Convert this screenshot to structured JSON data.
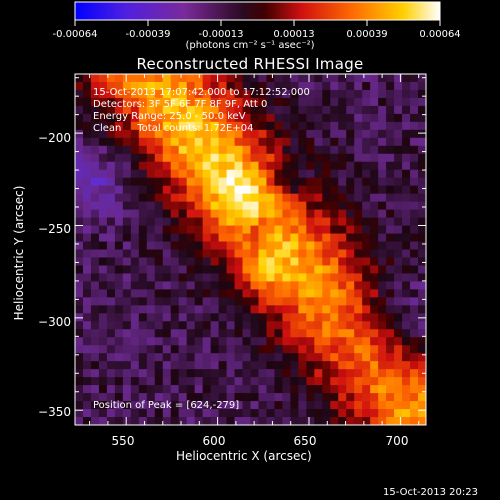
{
  "colorbar": {
    "ticks": [
      "-0.00064",
      "-0.00039",
      "-0.00013",
      "0.00013",
      "0.00039",
      "0.00064"
    ],
    "units": "(photons cm⁻² s⁻¹ asec⁻²)"
  },
  "chart_data": {
    "type": "heatmap",
    "title": "Reconstructed RHESSI Image",
    "xlabel": "Heliocentric X (arcsec)",
    "ylabel": "Heliocentric Y (arcsec)",
    "xlim": [
      522,
      714
    ],
    "ylim": [
      -358,
      -168
    ],
    "xticks": [
      550,
      600,
      650,
      700
    ],
    "yticks": [
      -200,
      -250,
      -300,
      -350
    ],
    "xtick_labels": [
      "550",
      "600",
      "650",
      "700"
    ],
    "ytick_labels": [
      "−200",
      "−250",
      "−300",
      "−350"
    ],
    "color_range": [
      -0.00064,
      0.00064
    ],
    "colormap": [
      "#0000ff",
      "#8a2be2",
      "#5a2a8a",
      "#000000",
      "#d01010",
      "#ff6a00",
      "#ffd000",
      "#ffffff"
    ],
    "peak_position": [
      624,
      -279
    ],
    "annotations": [
      "15-Oct-2013 17:07:42.000 to 17:12:52.000",
      "Detectors: 3F 5F 6F 7F 8F 9F, Att 0",
      "Energy Range: 25.0 - 50.0 keV",
      "Clean     Total counts: 1.72E+04"
    ],
    "peak_label": "Position of Peak = [624,-279]"
  },
  "timestamp": "15-Oct-2013 20:23"
}
